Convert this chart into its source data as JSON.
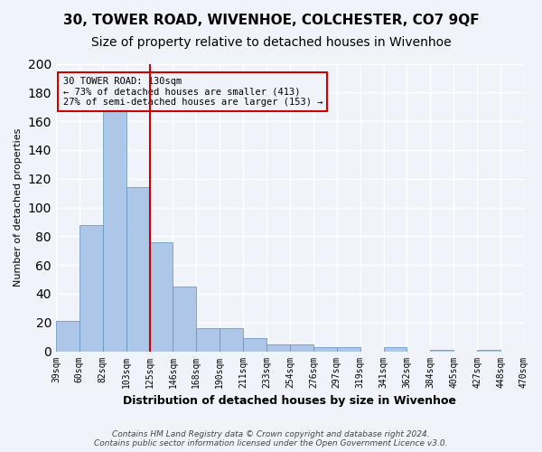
{
  "title1": "30, TOWER ROAD, WIVENHOE, COLCHESTER, CO7 9QF",
  "title2": "Size of property relative to detached houses in Wivenhoe",
  "xlabel": "Distribution of detached houses by size in Wivenhoe",
  "ylabel": "Number of detached properties",
  "bar_values": [
    21,
    88,
    168,
    114,
    76,
    45,
    16,
    16,
    9,
    5,
    5,
    3,
    3,
    0,
    3,
    0,
    1,
    0,
    1
  ],
  "bin_labels": [
    "39sqm",
    "60sqm",
    "82sqm",
    "103sqm",
    "125sqm",
    "146sqm",
    "168sqm",
    "190sqm",
    "211sqm",
    "233sqm",
    "254sqm",
    "276sqm",
    "297sqm",
    "319sqm",
    "341sqm",
    "362sqm",
    "384sqm",
    "405sqm",
    "427sqm",
    "448sqm",
    "470sqm"
  ],
  "bar_color": "#aec6e8",
  "bar_edge_color": "#5a8fc0",
  "vline_x": 4,
  "vline_color": "#cc0000",
  "annotation_text": "30 TOWER ROAD: 130sqm\n← 73% of detached houses are smaller (413)\n27% of semi-detached houses are larger (153) →",
  "annotation_box_color": "#cc0000",
  "footer_text": "Contains HM Land Registry data © Crown copyright and database right 2024.\nContains public sector information licensed under the Open Government Licence v3.0.",
  "ylim": [
    0,
    200
  ],
  "yticks": [
    0,
    20,
    40,
    60,
    80,
    100,
    120,
    140,
    160,
    180,
    200
  ],
  "background_color": "#f0f4fa",
  "grid_color": "#ffffff",
  "title1_fontsize": 11,
  "title2_fontsize": 10
}
